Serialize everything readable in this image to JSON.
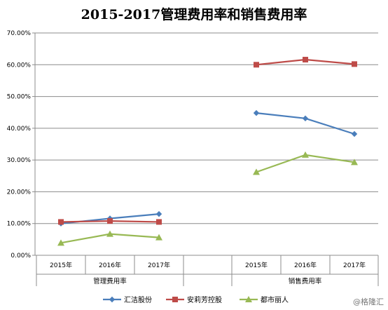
{
  "chart_data": {
    "type": "line",
    "title": "2015-2017管理费用率和销售费用率",
    "y_ticks": [
      "0.00%",
      "10.00%",
      "20.00%",
      "30.00%",
      "40.00%",
      "50.00%",
      "60.00%",
      "70.00%"
    ],
    "ylim": [
      0,
      70
    ],
    "groups": [
      {
        "label": "管理费用率",
        "categories": [
          "2015年",
          "2016年",
          "2017年"
        ]
      },
      {
        "label": "销售费用率",
        "categories": [
          "2015年",
          "2016年",
          "2017年"
        ]
      }
    ],
    "series": [
      {
        "name": "汇洁股份",
        "color": "#4a7ebb",
        "marker": "diamond",
        "values": [
          [
            10.0,
            11.6,
            13.0
          ],
          [
            44.8,
            43.1,
            38.2
          ]
        ]
      },
      {
        "name": "安莉芳控股",
        "color": "#be4b48",
        "marker": "square",
        "values": [
          [
            10.5,
            10.8,
            10.5
          ],
          [
            60.0,
            61.6,
            60.2
          ]
        ]
      },
      {
        "name": "都市丽人",
        "color": "#98b954",
        "marker": "triangle",
        "values": [
          [
            3.9,
            6.7,
            5.6
          ],
          [
            26.2,
            31.6,
            29.3
          ]
        ]
      }
    ],
    "grid": true,
    "legend_position": "bottom"
  },
  "watermark": "@格隆汇"
}
